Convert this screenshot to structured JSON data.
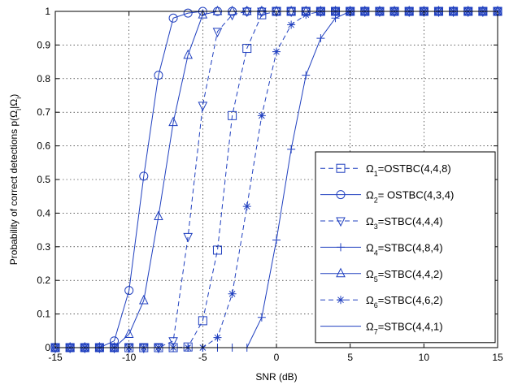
{
  "chart_data": {
    "type": "line",
    "xlabel": "SNR (dB)",
    "ylabel": "Probability of correct detections p(Ω",
    "ylabel_sub": "i",
    "ylabel_mid": "|Ω",
    "ylabel_sub2": "i",
    "ylabel_end": ")",
    "xlim": [
      -15,
      15
    ],
    "ylim": [
      0,
      1
    ],
    "xticks": [
      "-15",
      "-10",
      "-5",
      "0",
      "5",
      "10",
      "15"
    ],
    "yticks": [
      "0",
      "0.1",
      "0.2",
      "0.3",
      "0.4",
      "0.5",
      "0.6",
      "0.7",
      "0.8",
      "0.9",
      "1"
    ],
    "grid": true,
    "legend_position": "right",
    "color": "#1f3fbf",
    "x": [
      -15,
      -14,
      -13,
      -12,
      -11,
      -10,
      -9,
      -8,
      -7,
      -6,
      -5,
      -4,
      -3,
      -2,
      -1,
      0,
      1,
      2,
      3,
      4,
      5,
      6,
      7,
      8,
      9,
      10,
      11,
      12,
      13,
      14,
      15
    ],
    "series": [
      {
        "prefix": "Ω",
        "sub": "1",
        "suffix": "=OSTBC(4,4,8)",
        "marker": "square",
        "dash": "dashed",
        "values": [
          0,
          0,
          0,
          0,
          0,
          0,
          0,
          0,
          0,
          0.002,
          0.08,
          0.29,
          0.69,
          0.89,
          0.99,
          1,
          1,
          1,
          1,
          1,
          1,
          1,
          1,
          1,
          1,
          1,
          1,
          1,
          1,
          1,
          1
        ]
      },
      {
        "prefix": "Ω",
        "sub": "2",
        "suffix": "= OSTBC(4,3,4)",
        "marker": "circle",
        "dash": "solid",
        "values": [
          0,
          0,
          0,
          0,
          0.02,
          0.17,
          0.51,
          0.81,
          0.98,
          0.995,
          1,
          1,
          1,
          1,
          1,
          1,
          1,
          1,
          1,
          1,
          1,
          1,
          1,
          1,
          1,
          1,
          1,
          1,
          1,
          1,
          1
        ]
      },
      {
        "prefix": "Ω",
        "sub": "3",
        "suffix": "=STBC(4,4,4)",
        "marker": "triangle-down",
        "dash": "dashed",
        "values": [
          0,
          0,
          0,
          0,
          0,
          0,
          0,
          0,
          0.02,
          0.33,
          0.72,
          0.94,
          0.99,
          1,
          1,
          1,
          1,
          1,
          1,
          1,
          1,
          1,
          1,
          1,
          1,
          1,
          1,
          1,
          1,
          1,
          1
        ]
      },
      {
        "prefix": "Ω",
        "sub": "4",
        "suffix": "=STBC(4,8,4)",
        "marker": "plus",
        "dash": "solid",
        "values": [
          0,
          0,
          0,
          0,
          0,
          0,
          0,
          0,
          0,
          0,
          0,
          0,
          0,
          0,
          0.09,
          0.32,
          0.59,
          0.81,
          0.92,
          0.98,
          1,
          1,
          1,
          1,
          1,
          1,
          1,
          1,
          1,
          1,
          1
        ]
      },
      {
        "prefix": "Ω",
        "sub": "5",
        "suffix": "=STBC(4,4,2)",
        "marker": "triangle-up",
        "dash": "solid",
        "values": [
          0,
          0,
          0,
          0,
          0,
          0.04,
          0.14,
          0.39,
          0.67,
          0.87,
          0.99,
          1,
          1,
          1,
          1,
          1,
          1,
          1,
          1,
          1,
          1,
          1,
          1,
          1,
          1,
          1,
          1,
          1,
          1,
          1,
          1
        ]
      },
      {
        "prefix": "Ω",
        "sub": "6",
        "suffix": "=STBC(4,6,2)",
        "marker": "star",
        "dash": "dashed",
        "values": [
          0,
          0,
          0,
          0,
          0,
          0,
          0,
          0,
          0,
          0,
          0,
          0.03,
          0.16,
          0.42,
          0.69,
          0.88,
          0.96,
          0.99,
          1,
          1,
          1,
          1,
          1,
          1,
          1,
          1,
          1,
          1,
          1,
          1,
          1
        ]
      },
      {
        "prefix": "Ω",
        "sub": "7",
        "suffix": "=STBC(4,4,1)",
        "marker": "none",
        "dash": "solid",
        "values": [
          1,
          1,
          1,
          1,
          1,
          1,
          1,
          1,
          1,
          1,
          1,
          1,
          1,
          1,
          1,
          1,
          1,
          1,
          1,
          1,
          1,
          1,
          1,
          1,
          1,
          1,
          1,
          1,
          1,
          1,
          1
        ]
      }
    ]
  }
}
